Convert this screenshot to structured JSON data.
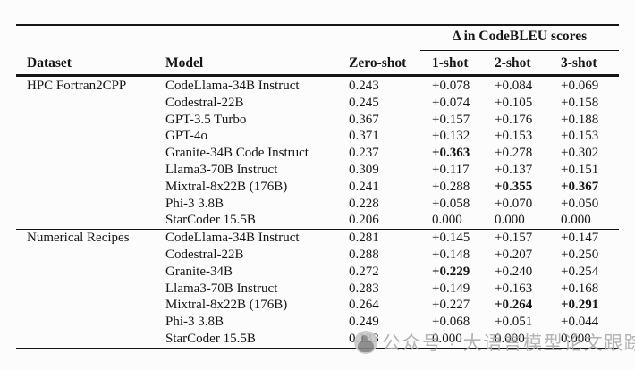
{
  "page": {
    "background": "#fcfcfc",
    "text_color": "#161616",
    "watermark_color": "#ababab"
  },
  "table": {
    "span_header": "Δ in CodeBLEU scores",
    "columns": [
      "Dataset",
      "Model",
      "Zero-shot",
      "1-shot",
      "2-shot",
      "3-shot"
    ],
    "sections": [
      {
        "dataset": "HPC Fortran2CPP",
        "rows": [
          {
            "model": "CodeLlama-34B Instruct",
            "zero_shot": "0.243",
            "one_shot": "+0.078",
            "two_shot": "+0.084",
            "three_shot": "+0.069",
            "bold": []
          },
          {
            "model": "Codestral-22B",
            "zero_shot": "0.245",
            "one_shot": "+0.074",
            "two_shot": "+0.105",
            "three_shot": "+0.158",
            "bold": []
          },
          {
            "model": "GPT-3.5 Turbo",
            "zero_shot": "0.367",
            "one_shot": "+0.157",
            "two_shot": "+0.176",
            "three_shot": "+0.188",
            "bold": []
          },
          {
            "model": "GPT-4o",
            "zero_shot": "0.371",
            "one_shot": "+0.132",
            "two_shot": "+0.153",
            "three_shot": "+0.153",
            "bold": []
          },
          {
            "model": "Granite-34B Code Instruct",
            "zero_shot": "0.237",
            "one_shot": "+0.363",
            "two_shot": "+0.278",
            "three_shot": "+0.302",
            "bold": [
              "one_shot"
            ]
          },
          {
            "model": "Llama3-70B Instruct",
            "zero_shot": "0.309",
            "one_shot": "+0.117",
            "two_shot": "+0.137",
            "three_shot": "+0.151",
            "bold": []
          },
          {
            "model": "Mixtral-8x22B (176B)",
            "zero_shot": "0.241",
            "one_shot": "+0.288",
            "two_shot": "+0.355",
            "three_shot": "+0.367",
            "bold": [
              "two_shot",
              "three_shot"
            ]
          },
          {
            "model": "Phi-3 3.8B",
            "zero_shot": "0.228",
            "one_shot": "+0.058",
            "two_shot": "+0.070",
            "three_shot": "+0.050",
            "bold": []
          },
          {
            "model": "StarCoder 15.5B",
            "zero_shot": "0.206",
            "one_shot": "0.000",
            "two_shot": "0.000",
            "three_shot": "0.000",
            "bold": []
          }
        ]
      },
      {
        "dataset": "Numerical Recipes",
        "rows": [
          {
            "model": "CodeLlama-34B Instruct",
            "zero_shot": "0.281",
            "one_shot": "+0.145",
            "two_shot": "+0.157",
            "three_shot": "+0.147",
            "bold": []
          },
          {
            "model": "Codestral-22B",
            "zero_shot": "0.288",
            "one_shot": "+0.148",
            "two_shot": "+0.207",
            "three_shot": "+0.250",
            "bold": []
          },
          {
            "model": "Granite-34B",
            "zero_shot": "0.272",
            "one_shot": "+0.229",
            "two_shot": "+0.240",
            "three_shot": "+0.254",
            "bold": [
              "one_shot"
            ]
          },
          {
            "model": "Llama3-70B Instruct",
            "zero_shot": "0.283",
            "one_shot": "+0.149",
            "two_shot": "+0.163",
            "three_shot": "+0.168",
            "bold": []
          },
          {
            "model": "Mixtral-8x22B (176B)",
            "zero_shot": "0.264",
            "one_shot": "+0.227",
            "two_shot": "+0.264",
            "three_shot": "+0.291",
            "bold": [
              "two_shot",
              "three_shot"
            ]
          },
          {
            "model": "Phi-3 3.8B",
            "zero_shot": "0.249",
            "one_shot": "+0.068",
            "two_shot": "+0.051",
            "three_shot": "+0.044",
            "bold": []
          },
          {
            "model": "StarCoder 15.5B",
            "zero_shot": "0.133",
            "one_shot": "0.000",
            "two_shot": "0.000",
            "three_shot": "0.000",
            "bold": []
          }
        ]
      }
    ]
  },
  "watermark": {
    "icon": "wechat-official-account-logo",
    "text": "公众号 · 大语言模型论文跟踪"
  }
}
